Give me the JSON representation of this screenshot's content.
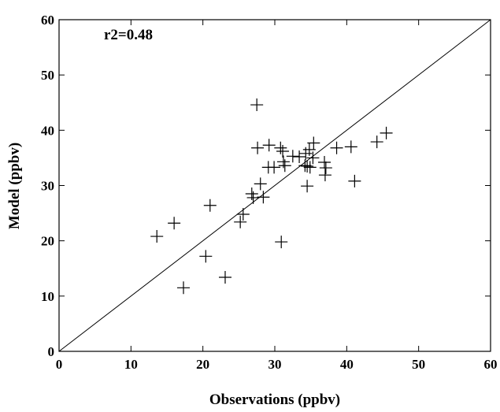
{
  "chart_data": {
    "type": "scatter",
    "xlabel": "Observations (ppbv)",
    "ylabel": "Model (ppbv)",
    "annotation": "r2=0.48",
    "xlim": [
      0,
      60
    ],
    "ylim": [
      0,
      60
    ],
    "xticks": [
      0,
      10,
      20,
      30,
      40,
      50,
      60
    ],
    "yticks": [
      0,
      10,
      20,
      30,
      40,
      50,
      60
    ],
    "color": "#000000",
    "x": [
      13.6,
      16.0,
      17.3,
      20.4,
      21.0,
      23.1,
      25.2,
      25.6,
      26.8,
      27.0,
      27.5,
      27.6,
      28.0,
      28.4,
      29.2,
      29.1,
      29.9,
      30.9,
      30.8,
      31.1,
      31.2,
      31.4,
      32.5,
      33.4,
      34.2,
      34.3,
      34.5,
      34.5,
      34.8,
      34.9,
      35.4,
      35.3,
      36.9,
      37.0,
      37.1,
      38.6,
      40.6,
      41.1,
      44.2,
      45.5
    ],
    "y": [
      20.8,
      23.2,
      11.5,
      17.2,
      26.4,
      13.4,
      23.4,
      24.8,
      28.5,
      27.8,
      44.6,
      36.8,
      30.3,
      27.9,
      37.3,
      33.3,
      33.3,
      19.8,
      36.8,
      36.2,
      34.3,
      33.6,
      35.3,
      35.2,
      33.6,
      35.8,
      33.5,
      29.9,
      36.5,
      33.3,
      37.7,
      35.0,
      34.2,
      31.9,
      33.2,
      36.8,
      37.0,
      30.8,
      37.9,
      39.5
    ]
  }
}
